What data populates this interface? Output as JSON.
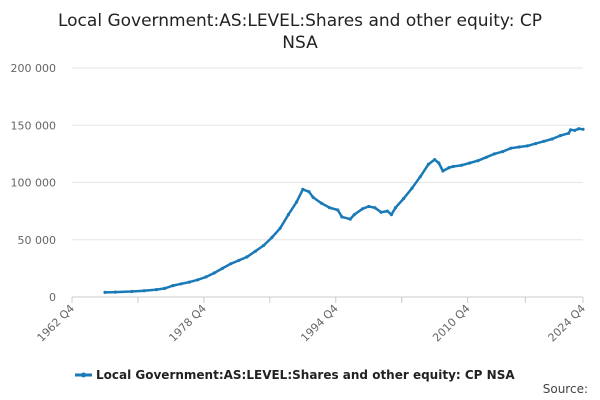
{
  "chart_data": {
    "type": "line",
    "title_lines": [
      "Local Government:AS:LEVEL:Shares and other equity: CP",
      "NSA"
    ],
    "y_ticks": [
      "0",
      "50 000",
      "100 000",
      "150 000",
      "200 000"
    ],
    "x_ticks": [
      "1962 Q4",
      "1978 Q4",
      "1994 Q4",
      "2010 Q4",
      "2024 Q4"
    ],
    "ylim": [
      0,
      200000
    ],
    "xlim": [
      1962.75,
      2024.75
    ],
    "grid": true,
    "legend_position": "bottom",
    "series": [
      {
        "name": "Local Government:AS:LEVEL:Shares and other equity: CP NSA",
        "color": "#1a7ab8",
        "points": [
          [
            1966.75,
            4000
          ],
          [
            1968.0,
            4300
          ],
          [
            1970.0,
            4800
          ],
          [
            1971.5,
            5500
          ],
          [
            1973.0,
            6500
          ],
          [
            1974.0,
            7500
          ],
          [
            1975.0,
            10000
          ],
          [
            1976.0,
            11500
          ],
          [
            1977.0,
            13000
          ],
          [
            1978.0,
            15000
          ],
          [
            1979.0,
            17500
          ],
          [
            1980.0,
            21000
          ],
          [
            1981.0,
            25000
          ],
          [
            1982.0,
            29000
          ],
          [
            1983.0,
            32000
          ],
          [
            1984.0,
            35000
          ],
          [
            1985.0,
            40000
          ],
          [
            1986.0,
            45000
          ],
          [
            1987.0,
            52000
          ],
          [
            1988.0,
            60000
          ],
          [
            1989.0,
            72000
          ],
          [
            1990.0,
            83000
          ],
          [
            1990.75,
            94000
          ],
          [
            1991.5,
            92000
          ],
          [
            1992.0,
            87000
          ],
          [
            1993.0,
            82000
          ],
          [
            1994.0,
            78000
          ],
          [
            1995.0,
            76000
          ],
          [
            1995.5,
            70000
          ],
          [
            1996.5,
            68000
          ],
          [
            1997.0,
            72000
          ],
          [
            1998.0,
            77000
          ],
          [
            1998.75,
            79000
          ],
          [
            1999.5,
            78000
          ],
          [
            2000.25,
            74000
          ],
          [
            2001.0,
            75000
          ],
          [
            2001.5,
            72000
          ],
          [
            2002.0,
            78000
          ],
          [
            2003.0,
            86000
          ],
          [
            2004.0,
            95000
          ],
          [
            2005.0,
            105000
          ],
          [
            2006.0,
            116000
          ],
          [
            2006.75,
            120000
          ],
          [
            2007.25,
            117000
          ],
          [
            2007.75,
            110000
          ],
          [
            2008.5,
            113000
          ],
          [
            2009.0,
            114000
          ],
          [
            2010.0,
            115000
          ],
          [
            2011.0,
            117000
          ],
          [
            2012.0,
            119000
          ],
          [
            2013.0,
            122000
          ],
          [
            2014.0,
            125000
          ],
          [
            2015.0,
            127000
          ],
          [
            2016.0,
            130000
          ],
          [
            2017.0,
            131000
          ],
          [
            2018.0,
            132000
          ],
          [
            2019.0,
            134000
          ],
          [
            2020.0,
            136000
          ],
          [
            2021.0,
            138000
          ],
          [
            2022.0,
            141000
          ],
          [
            2023.0,
            143000
          ],
          [
            2023.25,
            146000
          ],
          [
            2023.75,
            145500
          ],
          [
            2024.25,
            147000
          ],
          [
            2024.75,
            146500
          ]
        ]
      }
    ]
  },
  "source_label": "Source:"
}
